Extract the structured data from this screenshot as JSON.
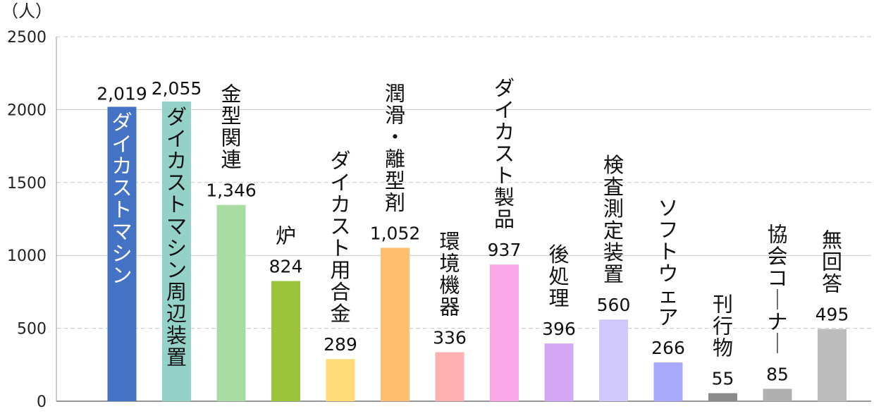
{
  "chart_data": {
    "type": "bar",
    "unit_label": "（人）",
    "ylim": [
      0,
      2500
    ],
    "y_ticks": [
      "0",
      "500",
      "1000",
      "1500",
      "2000",
      "2500"
    ],
    "grid": true,
    "categories": [
      "ダイカストマシン",
      "ダイカストマシン周辺装置",
      "金型関連",
      "炉",
      "ダイカスト用合金",
      "潤滑・離型剤",
      "環境機器",
      "ダイカスト製品",
      "後処理",
      "検査測定装置",
      "ソフトウェア",
      "刊行物",
      "協会コーナー",
      "無回答"
    ],
    "values": [
      2019,
      2055,
      1346,
      824,
      289,
      1052,
      336,
      937,
      396,
      560,
      266,
      55,
      85,
      495
    ],
    "value_labels": [
      "2,019",
      "2,055",
      "1,346",
      "824",
      "289",
      "1,052",
      "336",
      "937",
      "396",
      "560",
      "266",
      "55",
      "85",
      "495"
    ],
    "colors": [
      "#4472c4",
      "#94d2c8",
      "#a9dca2",
      "#9ac43c",
      "#ffdc78",
      "#ffbd6e",
      "#ffb0b0",
      "#fba8e8",
      "#d4a8f5",
      "#d0c8fc",
      "#a8a8fc",
      "#8a8a8a",
      "#b0b0b0",
      "#bcbcbc"
    ]
  }
}
